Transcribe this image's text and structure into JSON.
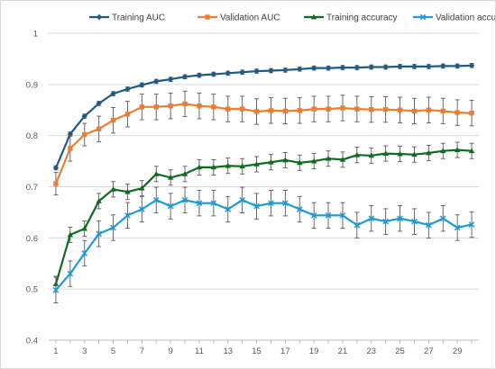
{
  "chart_data": {
    "type": "line",
    "title": "",
    "xlabel": "",
    "ylabel": "",
    "x": [
      1,
      2,
      3,
      4,
      5,
      6,
      7,
      8,
      9,
      10,
      11,
      12,
      13,
      14,
      15,
      16,
      17,
      18,
      19,
      20,
      21,
      22,
      23,
      24,
      25,
      26,
      27,
      28,
      29,
      30
    ],
    "x_tick_labels": [
      "1",
      "3",
      "5",
      "7",
      "9",
      "11",
      "13",
      "15",
      "17",
      "19",
      "21",
      "23",
      "25",
      "27",
      "29"
    ],
    "y_tick_labels": [
      "0.4",
      "0.5",
      "0.6",
      "0.7",
      "0.8",
      "0.9",
      "1"
    ],
    "ylim": [
      0.4,
      1.0
    ],
    "grid": "horizontal",
    "legend_position": "top",
    "series": [
      {
        "name": "Training AUC",
        "color": "#1f5a86",
        "marker": "diamond",
        "values": [
          0.737,
          0.803,
          0.838,
          0.863,
          0.882,
          0.891,
          0.899,
          0.906,
          0.91,
          0.915,
          0.918,
          0.92,
          0.922,
          0.924,
          0.926,
          0.927,
          0.928,
          0.93,
          0.932,
          0.932,
          0.933,
          0.933,
          0.934,
          0.934,
          0.935,
          0.935,
          0.935,
          0.936,
          0.936,
          0.937
        ],
        "errors": [
          0.004,
          0.004,
          0.004,
          0.004,
          0.004,
          0.004,
          0.004,
          0.004,
          0.004,
          0.004,
          0.004,
          0.004,
          0.004,
          0.004,
          0.004,
          0.004,
          0.004,
          0.004,
          0.004,
          0.004,
          0.004,
          0.004,
          0.004,
          0.004,
          0.004,
          0.004,
          0.004,
          0.004,
          0.004,
          0.004
        ]
      },
      {
        "name": "Validation AUC",
        "color": "#ed7d31",
        "marker": "square",
        "values": [
          0.706,
          0.775,
          0.802,
          0.813,
          0.83,
          0.842,
          0.856,
          0.856,
          0.858,
          0.862,
          0.858,
          0.856,
          0.852,
          0.852,
          0.847,
          0.849,
          0.848,
          0.849,
          0.852,
          0.852,
          0.854,
          0.852,
          0.851,
          0.851,
          0.85,
          0.848,
          0.85,
          0.848,
          0.845,
          0.844
        ],
        "errors": [
          0.022,
          0.025,
          0.022,
          0.025,
          0.025,
          0.025,
          0.025,
          0.025,
          0.025,
          0.025,
          0.025,
          0.025,
          0.025,
          0.025,
          0.025,
          0.025,
          0.025,
          0.025,
          0.025,
          0.025,
          0.025,
          0.025,
          0.025,
          0.025,
          0.025,
          0.025,
          0.025,
          0.025,
          0.025,
          0.025
        ]
      },
      {
        "name": "Training accuracy",
        "color": "#0f6b1e",
        "marker": "triangle",
        "values": [
          0.51,
          0.606,
          0.618,
          0.672,
          0.695,
          0.69,
          0.697,
          0.725,
          0.718,
          0.725,
          0.738,
          0.738,
          0.741,
          0.74,
          0.744,
          0.748,
          0.752,
          0.747,
          0.75,
          0.755,
          0.753,
          0.762,
          0.761,
          0.765,
          0.764,
          0.763,
          0.766,
          0.77,
          0.772,
          0.77
        ],
        "errors": [
          0.015,
          0.015,
          0.015,
          0.015,
          0.015,
          0.015,
          0.015,
          0.015,
          0.015,
          0.015,
          0.015,
          0.015,
          0.015,
          0.015,
          0.015,
          0.015,
          0.015,
          0.015,
          0.015,
          0.015,
          0.015,
          0.015,
          0.015,
          0.015,
          0.015,
          0.015,
          0.015,
          0.015,
          0.015,
          0.015
        ]
      },
      {
        "name": "Validation  accuracy",
        "color": "#1c9bd7",
        "marker": "x",
        "values": [
          0.498,
          0.53,
          0.57,
          0.608,
          0.62,
          0.644,
          0.656,
          0.674,
          0.662,
          0.674,
          0.668,
          0.668,
          0.656,
          0.674,
          0.662,
          0.668,
          0.668,
          0.656,
          0.644,
          0.644,
          0.644,
          0.625,
          0.638,
          0.632,
          0.638,
          0.632,
          0.625,
          0.638,
          0.62,
          0.626
        ],
        "errors": [
          0.025,
          0.025,
          0.025,
          0.025,
          0.025,
          0.025,
          0.025,
          0.025,
          0.025,
          0.025,
          0.025,
          0.025,
          0.025,
          0.025,
          0.025,
          0.025,
          0.025,
          0.025,
          0.025,
          0.025,
          0.025,
          0.025,
          0.025,
          0.025,
          0.025,
          0.025,
          0.025,
          0.025,
          0.025,
          0.025
        ]
      }
    ]
  }
}
